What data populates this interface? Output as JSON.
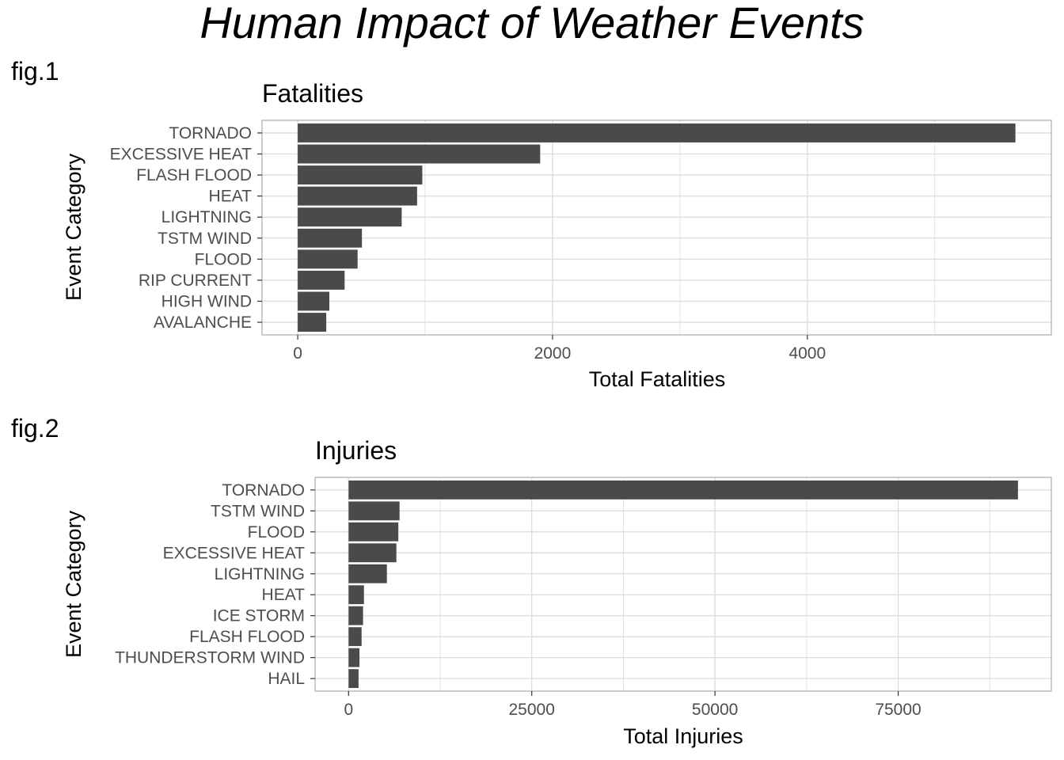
{
  "title": "Human Impact of Weather Events",
  "chart_data": [
    {
      "type": "bar",
      "orientation": "horizontal",
      "tag": "fig.1",
      "title": "Fatalities",
      "xlabel": "Total Fatalities",
      "ylabel": "Event Category",
      "categories": [
        "TORNADO",
        "EXCESSIVE HEAT",
        "FLASH FLOOD",
        "HEAT",
        "LIGHTNING",
        "TSTM WIND",
        "FLOOD",
        "RIP CURRENT",
        "HIGH WIND",
        "AVALANCHE"
      ],
      "values": [
        5633,
        1903,
        978,
        937,
        816,
        504,
        470,
        368,
        248,
        224
      ],
      "x_ticks": [
        0,
        2000,
        4000
      ],
      "xlim": [
        -280,
        5915
      ],
      "grid": true,
      "bar_color": "#4a4a4a"
    },
    {
      "type": "bar",
      "orientation": "horizontal",
      "tag": "fig.2",
      "title": "Injuries",
      "xlabel": "Total Injuries",
      "ylabel": "Event Category",
      "categories": [
        "TORNADO",
        "TSTM WIND",
        "FLOOD",
        "EXCESSIVE HEAT",
        "LIGHTNING",
        "HEAT",
        "ICE STORM",
        "FLASH FLOOD",
        "THUNDERSTORM WIND",
        "HAIL"
      ],
      "values": [
        91346,
        6957,
        6789,
        6525,
        5230,
        2100,
        1975,
        1777,
        1488,
        1361
      ],
      "x_ticks": [
        0,
        25000,
        50000,
        75000
      ],
      "xlim": [
        -4570,
        95900
      ],
      "grid": true,
      "bar_color": "#4a4a4a"
    }
  ]
}
